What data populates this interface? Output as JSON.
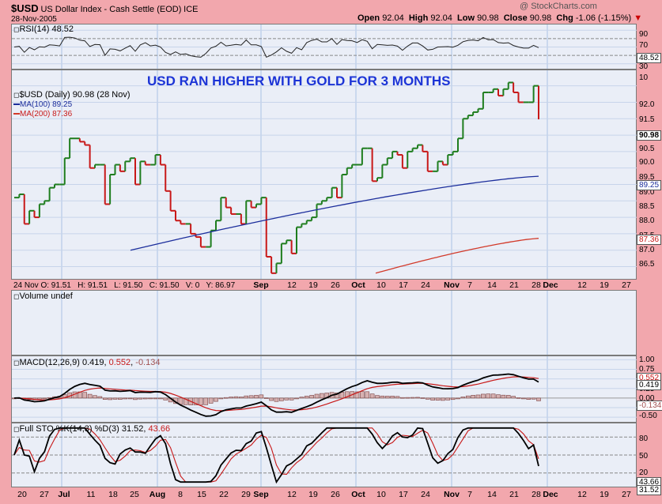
{
  "header": {
    "symbol": "$USD",
    "name": "US Dollar Index - Cash Settle (EOD)",
    "exchange": "ICE",
    "date": "28-Nov-2005",
    "watermark": "@ StockCharts.com",
    "open_label": "Open",
    "open": "92.04",
    "high_label": "High",
    "high": "92.04",
    "low_label": "Low",
    "low": "90.98",
    "close_label": "Close",
    "close": "90.98",
    "chg_label": "Chg",
    "chg": "-1.06 (-1.15%)"
  },
  "annotation": "USD RAN HIGHER WITH GOLD FOR 3 MONTHS",
  "rsi": {
    "label": "RSI(14)",
    "value": "48.52",
    "ticks": [
      "90",
      "70",
      "50",
      "30",
      "10"
    ],
    "current_box": "48.52"
  },
  "price": {
    "legend_title": "$USD (Daily) 90.98 (28 Nov)",
    "ma100_label": "MA(100) 89.25",
    "ma200_label": "MA(200) 87.36",
    "ticks": [
      "92.0",
      "91.5",
      "90.5",
      "90.0",
      "89.5",
      "89.0",
      "88.5",
      "88.0",
      "87.5",
      "87.0",
      "86.5"
    ],
    "close_box": "90.98",
    "ma100_box": "89.25",
    "ma200_box": "87.36",
    "info_line": "24 Nov O: 91.51   H: 91.51   L: 91.50   C: 91.50   V: 0   Y: 86.97",
    "x_labels": [
      "Sep",
      "12",
      "19",
      "26",
      "Oct",
      "10",
      "17",
      "24",
      "Nov",
      "7",
      "14",
      "21",
      "28",
      "Dec",
      "12",
      "19",
      "27"
    ]
  },
  "volume": {
    "label": "Volume undef"
  },
  "macd": {
    "label": "MACD(12,26,9)",
    "v1": "0.419",
    "v2": "0.552",
    "v3": "-0.134",
    "ticks": [
      "1.00",
      "0.75",
      "0.25",
      "0.00",
      "-0.25",
      "-0.50"
    ],
    "box1": "0.552",
    "box2": "0.419",
    "box3": "-0.134"
  },
  "sto": {
    "label": "Full STO %K(14,3) %D(3)",
    "v1": "31.52",
    "v2": "43.66",
    "ticks": [
      "80",
      "50",
      "20"
    ],
    "box1": "43.66",
    "box2": "31.52"
  },
  "bottom_axis": [
    "20",
    "27",
    "Jul",
    "11",
    "18",
    "25",
    "Aug",
    "8",
    "15",
    "22",
    "29",
    "Sep",
    "12",
    "19",
    "26",
    "Oct",
    "10",
    "17",
    "24",
    "Nov",
    "7",
    "14",
    "21",
    "28",
    "Dec",
    "12",
    "19",
    "27"
  ],
  "colors": {
    "up": "#1e7d1e",
    "down": "#c81818",
    "ma100": "#1c2e9c",
    "ma200": "#d23a2a",
    "annotation": "#1c34d6",
    "background": "#f2a7ad"
  },
  "chart_data": {
    "type": "line",
    "title": "USD RAN HIGHER WITH GOLD FOR 3 MONTHS",
    "x_range": [
      "2005-06-17",
      "2005-11-28"
    ],
    "series": [
      {
        "name": "$USD",
        "values": [
          88.6,
          88.7,
          87.8,
          88.2,
          88.0,
          88.4,
          88.5,
          88.9,
          89.0,
          89.0,
          89.8,
          90.4,
          90.4,
          90.3,
          90.2,
          89.5,
          89.6,
          89.6,
          88.4,
          89.3,
          89.6,
          89.4,
          89.7,
          89.8,
          89.0,
          89.7,
          89.6,
          89.6,
          89.9,
          89.6,
          88.8,
          88.2,
          87.9,
          87.8,
          87.8,
          87.5,
          87.4,
          87.1,
          87.1,
          87.6,
          87.9,
          88.6,
          88.3,
          88.1,
          88.1,
          87.8,
          88.5,
          88.3,
          88.4,
          88.6,
          86.8,
          86.3,
          86.6,
          87.2,
          87.3,
          86.9,
          87.7,
          87.8,
          87.9,
          88.0,
          88.4,
          88.5,
          88.6,
          88.9,
          88.6,
          89.3,
          89.5,
          89.6,
          89.6,
          90.1,
          90.1,
          89.1,
          89.2,
          89.6,
          89.8,
          90.0,
          89.9,
          89.5,
          90.0,
          90.1,
          90.2,
          90.0,
          89.4,
          89.4,
          89.7,
          89.6,
          89.9,
          90.0,
          90.4,
          91.0,
          91.1,
          91.2,
          91.3,
          91.8,
          91.8,
          91.9,
          91.7,
          91.9,
          92.1,
          91.8,
          91.5,
          91.5,
          91.5,
          92.0,
          90.98
        ]
      },
      {
        "name": "MA(100)",
        "values_range": [
          87.0,
          89.25
        ]
      },
      {
        "name": "MA(200)",
        "values_range": [
          86.3,
          87.36
        ]
      }
    ],
    "ylim": [
      86.2,
      92.4
    ],
    "rsi": {
      "current": 48.52,
      "ylim": [
        0,
        100
      ]
    },
    "macd": {
      "macd": 0.419,
      "signal": 0.552,
      "histogram": -0.134
    },
    "stochastic": {
      "k": 31.52,
      "d": 43.66
    }
  }
}
